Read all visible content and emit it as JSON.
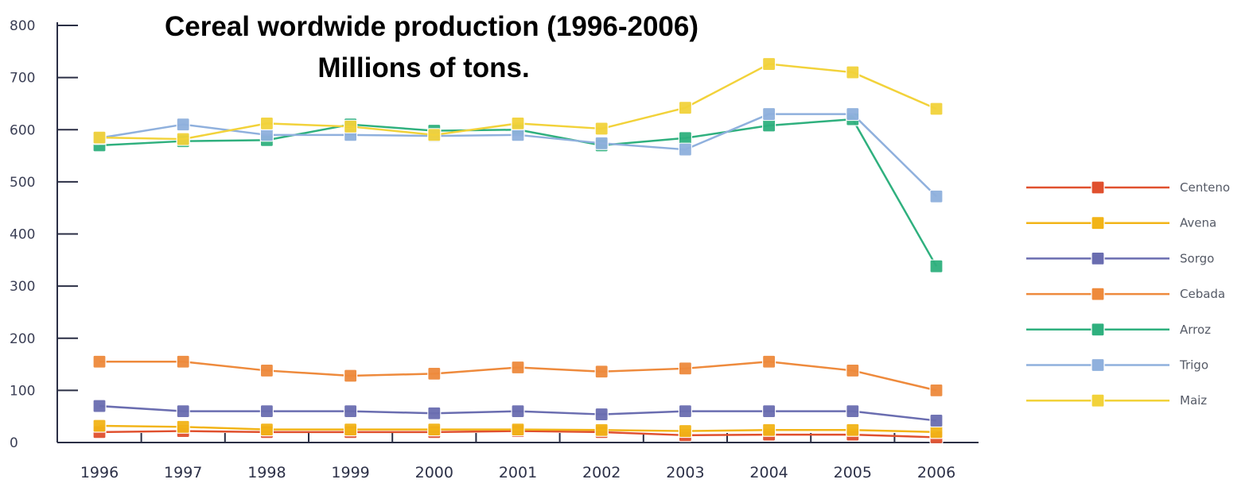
{
  "chart_data": {
    "type": "line",
    "title": "Cereal wordwide production (1996-2006)",
    "subtitle": "Millions of tons.",
    "xlabel": "",
    "ylabel": "",
    "ylim": [
      0,
      800
    ],
    "yticks": [
      "0",
      "100",
      "200",
      "300",
      "400",
      "500",
      "600",
      "700",
      "800"
    ],
    "x": [
      "1996",
      "1997",
      "1998",
      "1999",
      "2000",
      "2001",
      "2002",
      "2003",
      "2004",
      "2005",
      "2006"
    ],
    "legend_position": "right",
    "grid": false,
    "series": [
      {
        "name": "Centeno",
        "color": "#e0502e",
        "values": [
          20,
          22,
          20,
          20,
          20,
          22,
          20,
          14,
          15,
          15,
          10
        ]
      },
      {
        "name": "Avena",
        "color": "#f2b417",
        "values": [
          32,
          30,
          25,
          25,
          25,
          25,
          24,
          22,
          24,
          24,
          20
        ]
      },
      {
        "name": "Sorgo",
        "color": "#6a6db0",
        "values": [
          70,
          60,
          60,
          60,
          56,
          60,
          54,
          60,
          60,
          60,
          42
        ]
      },
      {
        "name": "Cebada",
        "color": "#ee8a3c",
        "values": [
          155,
          155,
          138,
          128,
          132,
          144,
          136,
          142,
          155,
          138,
          100
        ]
      },
      {
        "name": "Arroz",
        "color": "#2fb07e",
        "values": [
          570,
          578,
          580,
          610,
          598,
          600,
          570,
          584,
          608,
          620,
          338
        ]
      },
      {
        "name": "Trigo",
        "color": "#8fb0dd",
        "values": [
          584,
          610,
          590,
          590,
          588,
          590,
          574,
          562,
          630,
          630,
          472
        ]
      },
      {
        "name": "Maíz",
        "color": "#f2d23a",
        "values": [
          585,
          582,
          612,
          606,
          590,
          612,
          602,
          642,
          726,
          710,
          640
        ]
      }
    ]
  },
  "legend_labels": [
    "Centeno",
    "Avena",
    "Sorgo",
    "Cebada",
    "Arroz",
    "Trigo",
    "Maiz"
  ]
}
